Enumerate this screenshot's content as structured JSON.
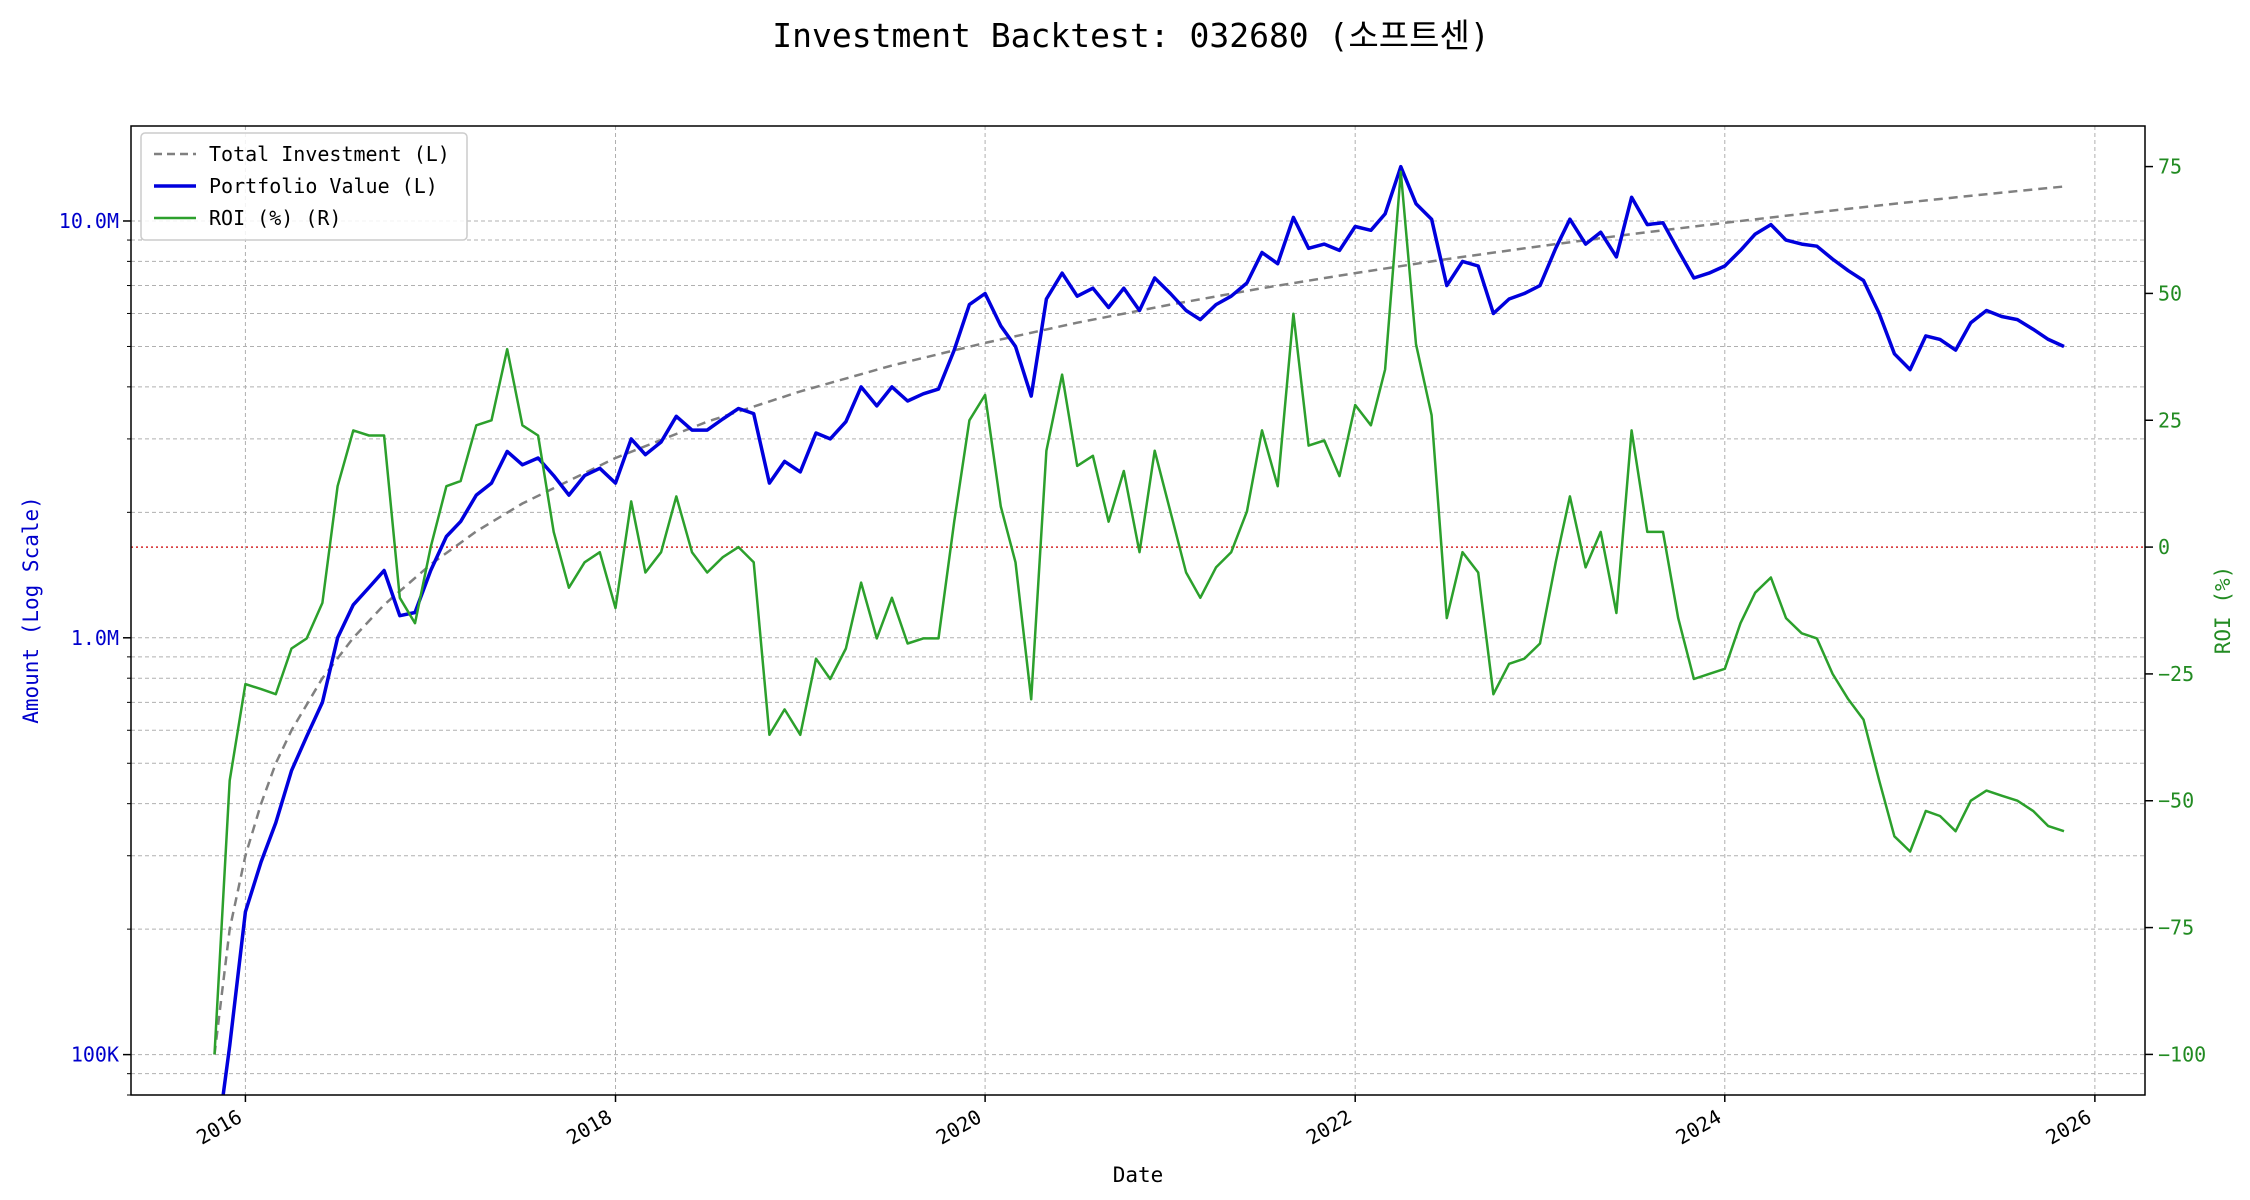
{
  "chart_data": {
    "type": "line",
    "title": "Investment Backtest: 032680 (소프트센)",
    "xlabel": "Date",
    "ylabel_left": "Amount (Log Scale)",
    "ylabel_right": "ROI (%)",
    "y_left_scale": "log",
    "y_left_lim": [
      80000,
      16900000
    ],
    "y_right_lim": [
      -108,
      83
    ],
    "x_lim": [
      "2015-05-20",
      "2026-04-10"
    ],
    "x_ticks": [
      "2016-01-01",
      "2018-01-01",
      "2020-01-01",
      "2022-01-01",
      "2024-01-01",
      "2026-01-01"
    ],
    "x_tick_labels": [
      "2016",
      "2018",
      "2020",
      "2022",
      "2024",
      "2026"
    ],
    "y_left_ticks": [
      100000,
      1000000,
      10000000
    ],
    "y_left_tick_labels": [
      "100K",
      "1.0M",
      "10.0M"
    ],
    "y_right_ticks": [
      75,
      50,
      25,
      0,
      -25,
      -50,
      -75,
      -100
    ],
    "y_right_tick_labels": [
      "75",
      "50",
      "25",
      "0",
      "−25",
      "−50",
      "−75",
      "−100"
    ],
    "grid": true,
    "legend_position": "top-left",
    "reference_line": {
      "axis": "right",
      "value": 0,
      "color": "#d62728",
      "style": "dotted"
    },
    "colors": {
      "total_investment": "#808080",
      "portfolio": "#0000dd",
      "roi": "#2ca02c",
      "left_axis": "#0000cc",
      "right_axis": "#228b22"
    },
    "series": [
      {
        "name": "Total Investment (L)",
        "axis": "left",
        "style": "dashed",
        "x": [
          "2015-11-01",
          "2015-12-01",
          "2016-01-01",
          "2016-02-01",
          "2016-03-01",
          "2016-04-01",
          "2016-06-01",
          "2016-08-01",
          "2016-10-01",
          "2017-01-01",
          "2017-04-01",
          "2017-07-01",
          "2018-01-01",
          "2018-07-01",
          "2019-01-01",
          "2019-07-01",
          "2020-01-01",
          "2020-07-01",
          "2021-01-01",
          "2021-07-01",
          "2022-01-01",
          "2022-07-01",
          "2023-01-01",
          "2023-07-01",
          "2024-01-01",
          "2024-07-01",
          "2025-01-01",
          "2025-07-01",
          "2025-11-01"
        ],
        "y": [
          100000,
          200000,
          300000,
          400000,
          500000,
          600000,
          800000,
          1000000,
          1200000,
          1500000,
          1800000,
          2100000,
          2700000,
          3300000,
          3900000,
          4500000,
          5100000,
          5700000,
          6300000,
          6900000,
          7500000,
          8100000,
          8700000,
          9300000,
          9900000,
          10500000,
          11100000,
          11700000,
          12100000
        ]
      },
      {
        "name": "Portfolio Value (L)",
        "axis": "left",
        "style": "solid",
        "x": [
          "2015-11-15",
          "2015-12-01",
          "2016-01-01",
          "2016-02-01",
          "2016-03-01",
          "2016-04-01",
          "2016-05-01",
          "2016-06-01",
          "2016-07-01",
          "2016-08-01",
          "2016-09-01",
          "2016-10-01",
          "2016-11-01",
          "2016-12-01",
          "2017-01-01",
          "2017-02-01",
          "2017-03-01",
          "2017-04-01",
          "2017-05-01",
          "2017-06-01",
          "2017-07-01",
          "2017-08-01",
          "2017-09-01",
          "2017-10-01",
          "2017-11-01",
          "2017-12-01",
          "2018-01-01",
          "2018-02-01",
          "2018-03-01",
          "2018-04-01",
          "2018-05-01",
          "2018-06-01",
          "2018-07-01",
          "2018-08-01",
          "2018-09-01",
          "2018-10-01",
          "2018-11-01",
          "2018-12-01",
          "2019-01-01",
          "2019-02-01",
          "2019-03-01",
          "2019-04-01",
          "2019-05-01",
          "2019-06-01",
          "2019-07-01",
          "2019-08-01",
          "2019-09-01",
          "2019-10-01",
          "2019-11-01",
          "2019-12-01",
          "2020-01-01",
          "2020-02-01",
          "2020-03-01",
          "2020-04-01",
          "2020-05-01",
          "2020-06-01",
          "2020-07-01",
          "2020-08-01",
          "2020-09-01",
          "2020-10-01",
          "2020-11-01",
          "2020-12-01",
          "2021-01-01",
          "2021-02-01",
          "2021-03-01",
          "2021-04-01",
          "2021-05-01",
          "2021-06-01",
          "2021-07-01",
          "2021-08-01",
          "2021-09-01",
          "2021-10-01",
          "2021-11-01",
          "2021-12-01",
          "2022-01-01",
          "2022-02-01",
          "2022-03-01",
          "2022-04-01",
          "2022-05-01",
          "2022-06-01",
          "2022-07-01",
          "2022-08-01",
          "2022-09-01",
          "2022-10-01",
          "2022-11-01",
          "2022-12-01",
          "2023-01-01",
          "2023-02-01",
          "2023-03-01",
          "2023-04-01",
          "2023-05-01",
          "2023-06-01",
          "2023-07-01",
          "2023-08-01",
          "2023-09-01",
          "2023-10-01",
          "2023-11-01",
          "2023-12-01",
          "2024-01-01",
          "2024-02-01",
          "2024-03-01",
          "2024-04-01",
          "2024-05-01",
          "2024-06-01",
          "2024-07-01",
          "2024-08-01",
          "2024-09-01",
          "2024-10-01",
          "2024-11-01",
          "2024-12-01",
          "2025-01-01",
          "2025-02-01",
          "2025-03-01",
          "2025-04-01",
          "2025-05-01",
          "2025-06-01",
          "2025-07-01",
          "2025-08-01",
          "2025-09-01",
          "2025-10-01",
          "2025-11-01"
        ],
        "y": [
          75000,
          105000,
          220000,
          290000,
          360000,
          480000,
          580000,
          700000,
          1000000,
          1200000,
          1320000,
          1450000,
          1130000,
          1150000,
          1450000,
          1750000,
          1900000,
          2200000,
          2350000,
          2800000,
          2600000,
          2700000,
          2450000,
          2200000,
          2450000,
          2550000,
          2350000,
          3000000,
          2750000,
          2950000,
          3400000,
          3150000,
          3150000,
          3350000,
          3550000,
          3450000,
          2350000,
          2650000,
          2500000,
          3100000,
          3000000,
          3300000,
          4000000,
          3600000,
          4000000,
          3700000,
          3850000,
          3950000,
          4900000,
          6300000,
          6700000,
          5600000,
          5000000,
          3800000,
          6500000,
          7500000,
          6600000,
          6900000,
          6200000,
          6900000,
          6100000,
          7300000,
          6700000,
          6100000,
          5800000,
          6300000,
          6600000,
          7100000,
          8400000,
          7900000,
          10200000,
          8600000,
          8800000,
          8500000,
          9700000,
          9500000,
          10400000,
          13500000,
          11000000,
          10100000,
          7000000,
          8000000,
          7800000,
          6000000,
          6500000,
          6700000,
          7000000,
          8600000,
          10100000,
          8800000,
          9400000,
          8200000,
          11400000,
          9800000,
          9900000,
          8500000,
          7300000,
          7500000,
          7800000,
          8500000,
          9300000,
          9800000,
          9000000,
          8800000,
          8700000,
          8100000,
          7600000,
          7200000,
          6000000,
          4800000,
          4400000,
          5300000,
          5200000,
          4900000,
          5700000,
          6100000,
          5900000,
          5800000,
          5500000,
          5200000,
          5000000
        ]
      },
      {
        "name": "ROI (%) (R)",
        "axis": "right",
        "style": "solid",
        "x": [
          "2015-11-01",
          "2015-12-01",
          "2016-01-01",
          "2016-02-01",
          "2016-03-01",
          "2016-04-01",
          "2016-05-01",
          "2016-06-01",
          "2016-07-01",
          "2016-08-01",
          "2016-09-01",
          "2016-10-01",
          "2016-11-01",
          "2016-12-01",
          "2017-01-01",
          "2017-02-01",
          "2017-03-01",
          "2017-04-01",
          "2017-05-01",
          "2017-06-01",
          "2017-07-01",
          "2017-08-01",
          "2017-09-01",
          "2017-10-01",
          "2017-11-01",
          "2017-12-01",
          "2018-01-01",
          "2018-02-01",
          "2018-03-01",
          "2018-04-01",
          "2018-05-01",
          "2018-06-01",
          "2018-07-01",
          "2018-08-01",
          "2018-09-01",
          "2018-10-01",
          "2018-11-01",
          "2018-12-01",
          "2019-01-01",
          "2019-02-01",
          "2019-03-01",
          "2019-04-01",
          "2019-05-01",
          "2019-06-01",
          "2019-07-01",
          "2019-08-01",
          "2019-09-01",
          "2019-10-01",
          "2019-11-01",
          "2019-12-01",
          "2020-01-01",
          "2020-02-01",
          "2020-03-01",
          "2020-04-01",
          "2020-05-01",
          "2020-06-01",
          "2020-07-01",
          "2020-08-01",
          "2020-09-01",
          "2020-10-01",
          "2020-11-01",
          "2020-12-01",
          "2021-01-01",
          "2021-02-01",
          "2021-03-01",
          "2021-04-01",
          "2021-05-01",
          "2021-06-01",
          "2021-07-01",
          "2021-08-01",
          "2021-09-01",
          "2021-10-01",
          "2021-11-01",
          "2021-12-01",
          "2022-01-01",
          "2022-02-01",
          "2022-03-01",
          "2022-04-01",
          "2022-05-01",
          "2022-06-01",
          "2022-07-01",
          "2022-08-01",
          "2022-09-01",
          "2022-10-01",
          "2022-11-01",
          "2022-12-01",
          "2023-01-01",
          "2023-02-01",
          "2023-03-01",
          "2023-04-01",
          "2023-05-01",
          "2023-06-01",
          "2023-07-01",
          "2023-08-01",
          "2023-09-01",
          "2023-10-01",
          "2023-11-01",
          "2023-12-01",
          "2024-01-01",
          "2024-02-01",
          "2024-03-01",
          "2024-04-01",
          "2024-05-01",
          "2024-06-01",
          "2024-07-01",
          "2024-08-01",
          "2024-09-01",
          "2024-10-01",
          "2024-11-01",
          "2024-12-01",
          "2025-01-01",
          "2025-02-01",
          "2025-03-01",
          "2025-04-01",
          "2025-05-01",
          "2025-06-01",
          "2025-07-01",
          "2025-08-01",
          "2025-09-01",
          "2025-10-01",
          "2025-11-01"
        ],
        "y": [
          -100,
          -46,
          -27,
          -28,
          -29,
          -20,
          -18,
          -11,
          12,
          23,
          22,
          22,
          -10,
          -15,
          0,
          12,
          13,
          24,
          25,
          39,
          24,
          22,
          3,
          -8,
          -3,
          -1,
          -12,
          9,
          -5,
          -1,
          10,
          -1,
          -5,
          -2,
          0,
          -3,
          -37,
          -32,
          -37,
          -22,
          -26,
          -20,
          -7,
          -18,
          -10,
          -19,
          -18,
          -18,
          5,
          25,
          30,
          8,
          -3,
          -30,
          19,
          34,
          16,
          18,
          5,
          15,
          -1,
          19,
          7,
          -5,
          -10,
          -4,
          -1,
          7,
          23,
          12,
          46,
          20,
          21,
          14,
          28,
          24,
          35,
          74,
          40,
          26,
          -14,
          -1,
          -5,
          -29,
          -23,
          -22,
          -19,
          -3,
          10,
          -4,
          3,
          -13,
          23,
          3,
          3,
          -14,
          -26,
          -25,
          -24,
          -15,
          -9,
          -6,
          -14,
          -17,
          -18,
          -25,
          -30,
          -34,
          -46,
          -57,
          -60,
          -52,
          -53,
          -56,
          -50,
          -48,
          -49,
          -50,
          -52,
          -55,
          -56
        ]
      }
    ]
  }
}
